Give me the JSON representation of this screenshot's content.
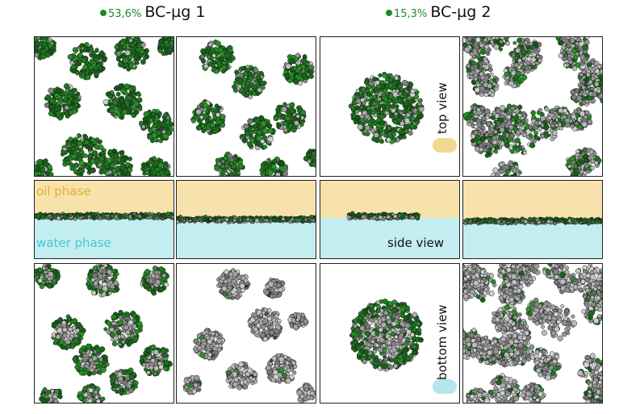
{
  "headers": [
    {
      "percent": "53,6%",
      "label": "BC-µg 1"
    },
    {
      "percent": "15,3%",
      "label": "BC-µg 2"
    }
  ],
  "labels": {
    "oil_phase": "oil phase",
    "water_phase": "water phase",
    "top_view": "top view",
    "side_view": "side view",
    "bottom_view": "bottom view"
  },
  "colors": {
    "green": "#1f7a1f",
    "grey": "#a9a9a9",
    "oil": "#f7e2ac",
    "water": "#c2eef1",
    "accent": "#1f8a1f"
  }
}
